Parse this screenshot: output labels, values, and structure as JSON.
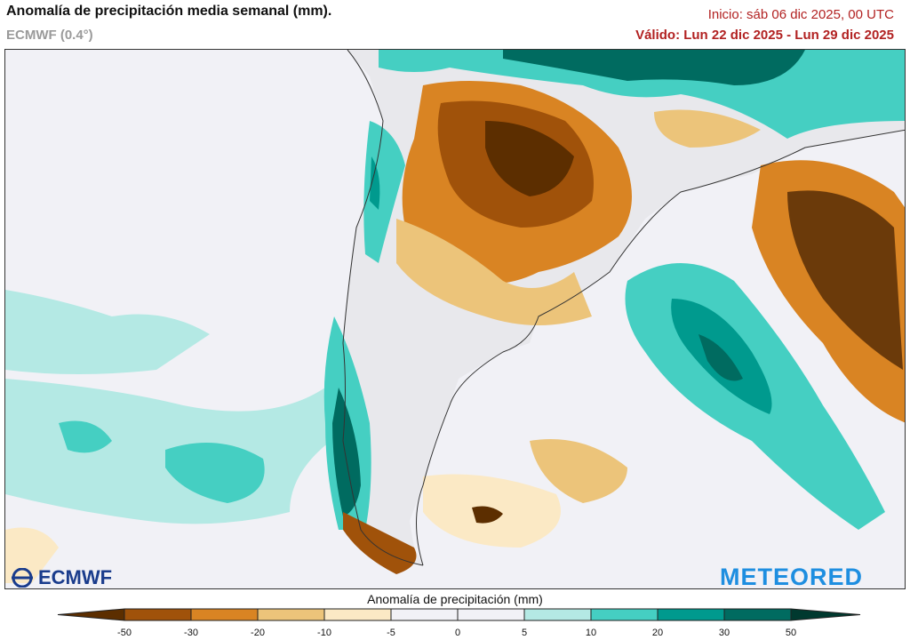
{
  "header": {
    "title": "Anomalía de precipitación media semanal (mm).",
    "model": "ECMWF (0.4°)",
    "init": "Inicio:  sáb 06 dic 2025, 00 UTC",
    "valid": "Válido: Lun 22 dic 2025 - Lun 29 dic 2025"
  },
  "logos": {
    "left": "ECMWF",
    "right": "METEORED"
  },
  "colorbar": {
    "title": "Anomalía de precipitación (mm)",
    "ticks": [
      "-50",
      "-30",
      "-20",
      "-10",
      "-5",
      "0",
      "5",
      "10",
      "20",
      "30",
      "50"
    ],
    "colors": [
      "#5c2e00",
      "#a0520a",
      "#d98423",
      "#ecc47a",
      "#fbe9c5",
      "#f1f1f6",
      "#f1f1f6",
      "#b4e9e4",
      "#45cfc2",
      "#009a8e",
      "#006b60",
      "#00392f"
    ]
  },
  "colors": {
    "dry_strong": "#6b3a0a",
    "dry": "#b8701e",
    "dry_light": "#e9bf78",
    "wet_light": "#b4e9e4",
    "wet": "#45cfc2",
    "wet_strong": "#00796c",
    "title_red": "#b22222"
  }
}
